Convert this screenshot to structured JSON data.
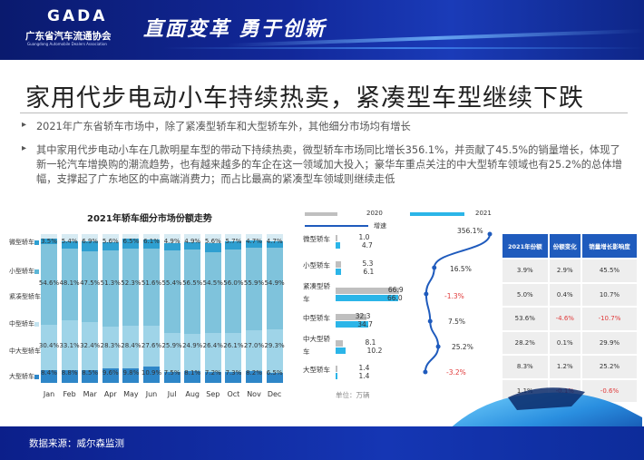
{
  "header": {
    "logo_mark": "GADA",
    "logo_cn": "广东省汽车流通协会",
    "logo_en": "Guangdong Automobile Dealers Association",
    "slogan": "直面变革 勇于创新"
  },
  "title": "家用代步电动小车持续热卖，紧凑型车型继续下跌",
  "bullets": [
    "2021年广东省轿车市场中，除了紧凑型轿车和大型轿车外，其他细分市场均有增长",
    "其中家用代步电动小车在几款明星车型的带动下持续热卖，微型轿车市场同比增长356.1%，并贡献了45.5%的销量增长，体现了新一轮汽车增换购的潮流趋势，也有越来越多的车企在这一领域加大投入；豪华车重点关注的中大型轿车领域也有25.2%的总体增幅，支撑起了广东地区的中高端消费力；而占比最高的紧凑型车领域则继续走低"
  ],
  "chart_data": [
    {
      "type": "bar",
      "stacked": true,
      "title": "2021年轿车细分市场份额走势",
      "categories": [
        "Jan",
        "Feb",
        "Mar",
        "Apr",
        "May",
        "Jun",
        "Jul",
        "Aug",
        "Sep",
        "Oct",
        "Nov",
        "Dec"
      ],
      "ylim": [
        0,
        100
      ],
      "series": [
        {
          "name": "大型轿车",
          "values": [
            8.4,
            8.8,
            8.5,
            9.6,
            9.8,
            10.9,
            7.5,
            8.1,
            7.2,
            7.3,
            8.2,
            6.5
          ],
          "color": "#2e86c8"
        },
        {
          "name": "中大型轿车",
          "values": [
            30.4,
            33.1,
            32.4,
            28.3,
            28.4,
            27.6,
            25.9,
            24.9,
            26.4,
            26.1,
            27.0,
            29.3
          ],
          "color": "#9fd4e8"
        },
        {
          "name": "中型轿车",
          "values": [
            0,
            0,
            0,
            0,
            0,
            0,
            0,
            0,
            0,
            0,
            0,
            0
          ],
          "color": "#c4e3ef"
        },
        {
          "name": "紧凑型轿车",
          "values": [
            54.6,
            48.1,
            47.5,
            51.3,
            52.3,
            51.6,
            55.4,
            56.5,
            54.5,
            56.0,
            55.9,
            54.9
          ],
          "color": "#7fc3dc"
        },
        {
          "name": "小型轿车",
          "values": [
            0,
            0,
            0,
            0,
            0,
            0,
            0,
            0,
            0,
            0,
            0,
            0
          ],
          "color": "#5db6d6"
        },
        {
          "name": "微型轿车",
          "values": [
            3.5,
            5.4,
            6.9,
            5.6,
            6.5,
            6.1,
            4.9,
            4.9,
            5.6,
            5.7,
            4.7,
            4.7
          ],
          "color": "#2e9fd1"
        }
      ],
      "legend": [
        "微型轿车",
        "小型轿车",
        "紧凑型轿车",
        "中型轿车",
        "中大型轿车",
        "大型轿车"
      ]
    },
    {
      "type": "bar",
      "orientation": "horizontal",
      "categories": [
        "微型轿车",
        "小型轿车",
        "紧凑型轿车",
        "中型轿车",
        "中大型轿车",
        "大型轿车"
      ],
      "series": [
        {
          "name": "2020",
          "values": [
            1.0,
            5.3,
            66.9,
            32.3,
            8.1,
            1.4
          ],
          "color": "#bfbfbf"
        },
        {
          "name": "2021",
          "values": [
            4.7,
            6.1,
            66.0,
            34.7,
            10.2,
            1.4
          ],
          "color": "#2bb5e8"
        }
      ],
      "unit": "单位：万辆"
    },
    {
      "type": "line",
      "name": "增速",
      "categories": [
        "微型轿车",
        "小型轿车",
        "紧凑型轿车",
        "中型轿车",
        "中大型轿车",
        "大型轿车"
      ],
      "values": [
        356.1,
        16.5,
        -1.3,
        7.5,
        25.2,
        -3.2
      ],
      "labels": [
        "356.1%",
        "16.5%",
        "-1.3%",
        "7.5%",
        "25.2%",
        "-3.2%"
      ],
      "color": "#1f5bbd"
    }
  ],
  "legend_mid": {
    "y2020": "2020",
    "y2021": "2021",
    "growth": "增速"
  },
  "mid_labels": {
    "cats": [
      "微型轿车",
      "小型轿车",
      "紧凑型轿",
      "车",
      "中型轿车",
      "中大型轿",
      "车",
      "大型轿车"
    ],
    "v2020": [
      "1.0",
      "5.3",
      "66.9",
      "32.3",
      "8.1",
      "1.4"
    ],
    "v2021": [
      "4.7",
      "6.1",
      "66.0",
      "34.7",
      "10.2",
      "1.4"
    ],
    "unit": "单位：万辆"
  },
  "table": {
    "headers": [
      "2021年份额",
      "份额变化",
      "销量增长影响度"
    ],
    "rows": [
      [
        "3.9%",
        "2.9%",
        "45.5%"
      ],
      [
        "5.0%",
        "0.4%",
        "10.7%"
      ],
      [
        "53.6%",
        "-4.6%",
        "-10.7%"
      ],
      [
        "28.2%",
        "0.1%",
        "29.9%"
      ],
      [
        "8.3%",
        "1.2%",
        "25.2%"
      ],
      [
        "1.1%",
        "-0.1%",
        "-0.6%"
      ]
    ]
  },
  "footer": {
    "source": "数据来源：威尔森监测"
  }
}
